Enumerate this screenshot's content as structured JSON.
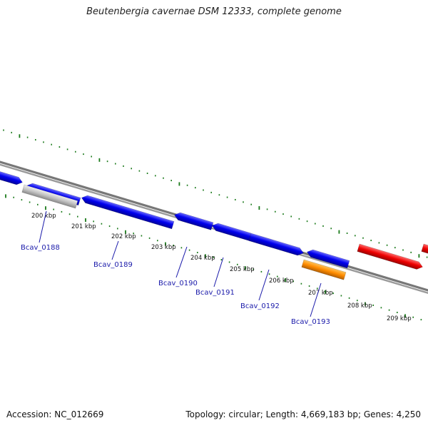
{
  "title": "Beutenbergia cavernae DSM 12333, complete genome",
  "footer": {
    "accession": "Accession: NC_012669",
    "summary": "Topology: circular; Length: 4,669,183 bp; Genes: 4,250"
  },
  "colors": {
    "cds_forward": "#0000ee",
    "cds_reverse": "#0000ee",
    "rna": "#bdbdbd",
    "misc": "#ff8c00",
    "highlight": "#ee0000",
    "backbone": "#777777",
    "ticks": "#1a7a1a",
    "locus_text": "#1a1aaa"
  },
  "scale_labels": [
    "200 kbp",
    "201 kbp",
    "202 kbp",
    "203 kbp",
    "204 kbp",
    "205 kbp",
    "206 kbp",
    "207 kbp",
    "208 kbp",
    "209 kbp"
  ],
  "locus_tags": [
    "Bcav_0188",
    "Bcav_0189",
    "Bcav_0190",
    "Bcav_0191",
    "Bcav_0192",
    "Bcav_0193"
  ]
}
